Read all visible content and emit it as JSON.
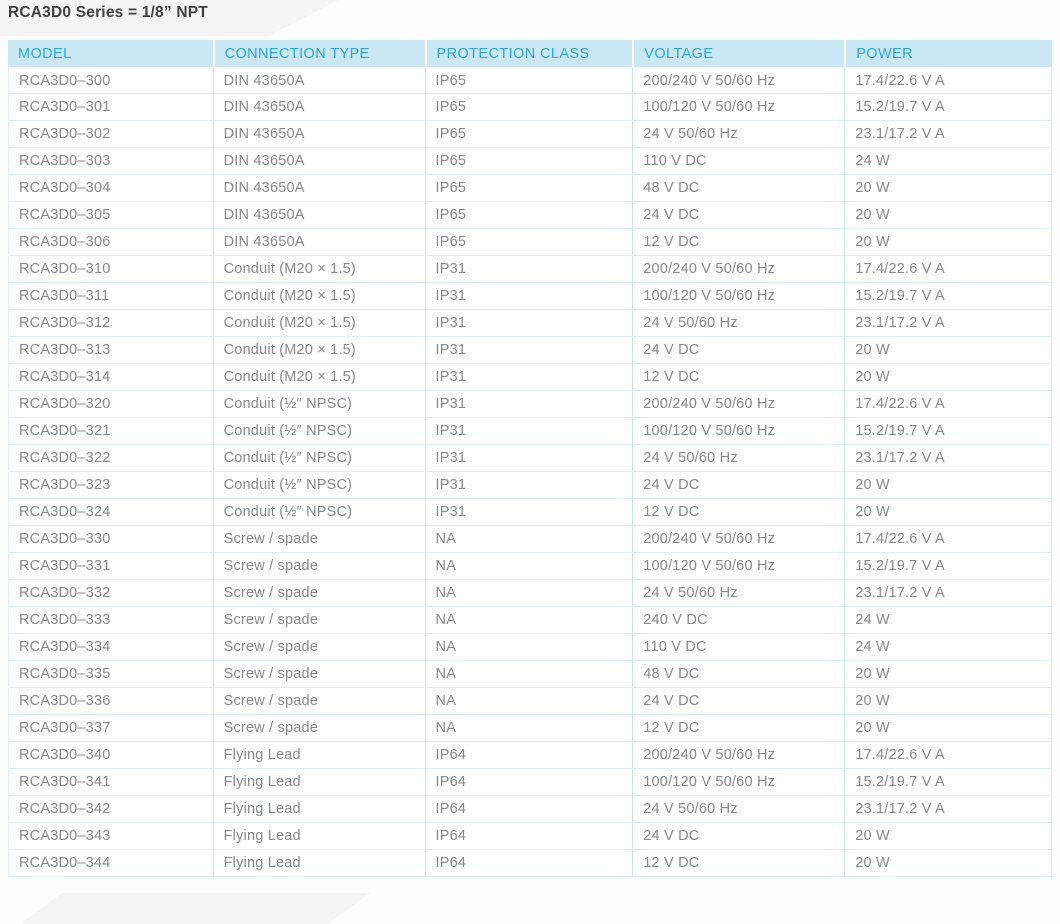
{
  "title": "RCA3D0 Series = 1/8” NPT",
  "table": {
    "columns": [
      "MODEL",
      "CONNECTION TYPE",
      "PROTECTION CLASS",
      "VOLTAGE",
      "POWER"
    ],
    "rows": [
      [
        "RCA3D0–300",
        "DIN 43650A",
        "IP65",
        "200/240 V 50/60 Hz",
        "17.4/22.6 V A"
      ],
      [
        "RCA3D0–301",
        "DIN 43650A",
        "IP65",
        "100/120 V 50/60 Hz",
        "15.2/19.7 V A"
      ],
      [
        "RCA3D0–302",
        "DIN 43650A",
        "IP65",
        "24 V 50/60 Hz",
        "23.1/17.2 V A"
      ],
      [
        "RCA3D0–303",
        "DIN 43650A",
        "IP65",
        "110 V DC",
        "24 W"
      ],
      [
        "RCA3D0–304",
        "DIN 43650A",
        "IP65",
        "48 V DC",
        "20 W"
      ],
      [
        "RCA3D0–305",
        "DIN 43650A",
        "IP65",
        "24 V DC",
        "20 W"
      ],
      [
        "RCA3D0–306",
        "DIN 43650A",
        "IP65",
        "12 V DC",
        "20 W"
      ],
      [
        "RCA3D0–310",
        "Conduit (M20 × 1.5)",
        "IP31",
        "200/240 V 50/60 Hz",
        "17.4/22.6 V A"
      ],
      [
        "RCA3D0–311",
        "Conduit (M20 × 1.5)",
        "IP31",
        "100/120 V 50/60 Hz",
        "15.2/19.7 V A"
      ],
      [
        "RCA3D0–312",
        "Conduit (M20 × 1.5)",
        "IP31",
        "24 V 50/60 Hz",
        "23.1/17.2 V A"
      ],
      [
        "RCA3D0–313",
        "Conduit (M20 × 1.5)",
        "IP31",
        "24 V DC",
        "20 W"
      ],
      [
        "RCA3D0–314",
        "Conduit (M20 × 1.5)",
        "IP31",
        "12 V DC",
        "20 W"
      ],
      [
        "RCA3D0–320",
        "Conduit (½″ NPSC)",
        "IP31",
        "200/240 V 50/60 Hz",
        "17.4/22.6 V A"
      ],
      [
        "RCA3D0–321",
        "Conduit (½″ NPSC)",
        "IP31",
        "100/120 V 50/60 Hz",
        "15.2/19.7 V A"
      ],
      [
        "RCA3D0–322",
        "Conduit (½″ NPSC)",
        "IP31",
        "24 V 50/60 Hz",
        "23.1/17.2 V A"
      ],
      [
        "RCA3D0–323",
        "Conduit (½″ NPSC)",
        "IP31",
        "24 V DC",
        "20 W"
      ],
      [
        "RCA3D0–324",
        "Conduit (½″ NPSC)",
        "IP31",
        "12 V DC",
        "20 W"
      ],
      [
        "RCA3D0–330",
        "Screw / spade",
        "NA",
        "200/240 V 50/60 Hz",
        "17.4/22.6 V A"
      ],
      [
        "RCA3D0–331",
        "Screw / spade",
        "NA",
        "100/120 V 50/60 Hz",
        "15.2/19.7 V A"
      ],
      [
        "RCA3D0–332",
        "Screw / spade",
        "NA",
        "24 V 50/60 Hz",
        "23.1/17.2 V A"
      ],
      [
        "RCA3D0–333",
        "Screw / spade",
        "NA",
        "240 V DC",
        "24 W"
      ],
      [
        "RCA3D0–334",
        "Screw / spade",
        "NA",
        "110 V DC",
        "24 W"
      ],
      [
        "RCA3D0–335",
        "Screw / spade",
        "NA",
        "48 V DC",
        "20 W"
      ],
      [
        "RCA3D0–336",
        "Screw / spade",
        "NA",
        "24 V DC",
        "20 W"
      ],
      [
        "RCA3D0–337",
        "Screw / spade",
        "NA",
        "12 V DC",
        "20 W"
      ],
      [
        "RCA3D0–340",
        "Flying Lead",
        "IP64",
        "200/240 V 50/60 Hz",
        "17.4/22.6 V A"
      ],
      [
        "RCA3D0–341",
        "Flying Lead",
        "IP64",
        "100/120 V 50/60 Hz",
        "15.2/19.7 V A"
      ],
      [
        "RCA3D0–342",
        "Flying Lead",
        "IP64",
        "24 V 50/60 Hz",
        "23.1/17.2 V A"
      ],
      [
        "RCA3D0–343",
        "Flying Lead",
        "IP64",
        "24 V DC",
        "20 W"
      ],
      [
        "RCA3D0–344",
        "Flying Lead",
        "IP64",
        "12 V DC",
        "20 W"
      ]
    ]
  },
  "colors": {
    "header_bg": "#c9e8f3",
    "header_text": "#2ba7de",
    "body_text": "#87888a",
    "row_border": "#dceff6",
    "column_border": "#c7e6f1",
    "title_text": "#414042",
    "page_bg": "#fdfdfd"
  }
}
